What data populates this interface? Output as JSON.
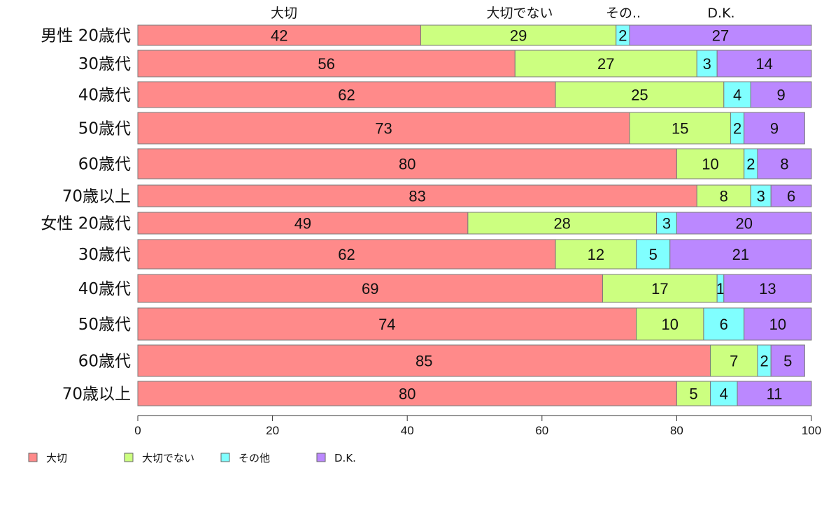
{
  "chart_data": {
    "type": "bar",
    "orientation": "horizontal",
    "stacked": true,
    "title": "",
    "xlabel": "",
    "ylabel": "",
    "xlim": [
      0,
      100
    ],
    "x_ticks": [
      0,
      20,
      40,
      60,
      80,
      100
    ],
    "grid": false,
    "legend_position": "bottom-left",
    "column_headers": [
      "大切",
      "大切でない",
      "その..",
      "D.K."
    ],
    "categories": [
      "男性 20歳代",
      "30歳代",
      "40歳代",
      "50歳代",
      "60歳代",
      "70歳以上",
      "女性 20歳代",
      "30歳代",
      "40歳代",
      "50歳代",
      "60歳代",
      "70歳以上"
    ],
    "series": [
      {
        "name": "大切",
        "color": "#ff8a8a",
        "values": [
          42,
          56,
          62,
          73,
          80,
          83,
          49,
          62,
          69,
          74,
          85,
          80
        ]
      },
      {
        "name": "大切でない",
        "color": "#ccff80",
        "values": [
          29,
          27,
          25,
          15,
          10,
          8,
          28,
          12,
          17,
          10,
          7,
          5
        ]
      },
      {
        "name": "その他",
        "color": "#80ffff",
        "values": [
          2,
          3,
          4,
          2,
          2,
          3,
          3,
          5,
          1,
          6,
          2,
          4
        ]
      },
      {
        "name": "D.K.",
        "color": "#bb88ff",
        "values": [
          27,
          14,
          9,
          9,
          8,
          6,
          20,
          21,
          13,
          10,
          5,
          11
        ]
      }
    ]
  }
}
